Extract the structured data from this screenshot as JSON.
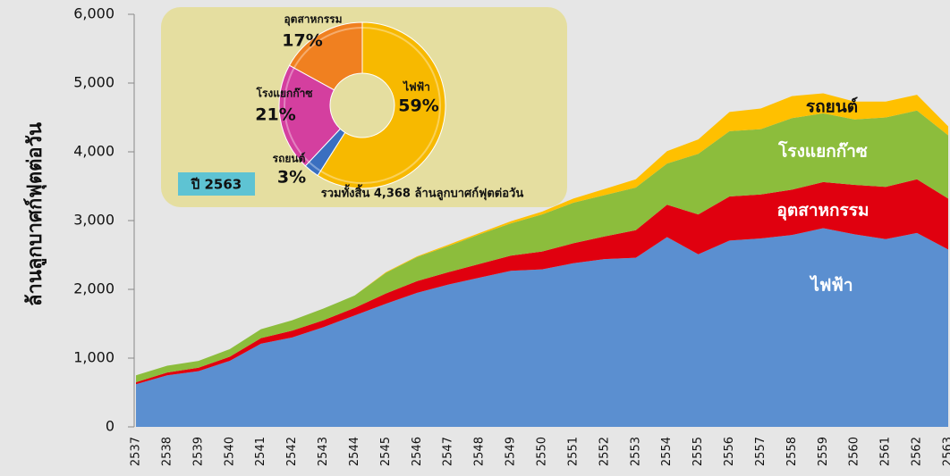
{
  "chart_data": [
    {
      "type": "stacked_area",
      "y_label": "ล้านลูกบาศก์ฟุตต่อวัน",
      "categories": [
        "2537",
        "2538",
        "2539",
        "2540",
        "2541",
        "2542",
        "2543",
        "2544",
        "2545",
        "2546",
        "2547",
        "2548",
        "2549",
        "2550",
        "2551",
        "2552",
        "2553",
        "2554",
        "2555",
        "2556",
        "2557",
        "2558",
        "2559",
        "2560",
        "2561",
        "2562",
        "2563"
      ],
      "series": [
        {
          "name": "ไฟฟ้า",
          "color": "#5b8fd0",
          "values": [
            620,
            750,
            810,
            960,
            1210,
            1300,
            1450,
            1620,
            1790,
            1950,
            2070,
            2170,
            2270,
            2290,
            2380,
            2440,
            2460,
            2760,
            2510,
            2710,
            2740,
            2790,
            2890,
            2800,
            2730,
            2820,
            2580
          ]
        },
        {
          "name": "อุตสาหกรรม",
          "color": "#e0000f",
          "values": [
            30,
            40,
            50,
            60,
            80,
            100,
            100,
            110,
            150,
            170,
            180,
            200,
            220,
            260,
            290,
            330,
            400,
            470,
            580,
            640,
            640,
            660,
            670,
            720,
            760,
            780,
            740
          ]
        },
        {
          "name": "โรงแยกก๊าซ",
          "color": "#8cbd3c",
          "values": [
            100,
            100,
            100,
            110,
            130,
            150,
            170,
            180,
            300,
            350,
            380,
            430,
            470,
            540,
            590,
            600,
            620,
            600,
            880,
            950,
            950,
            1040,
            1000,
            950,
            1010,
            1000,
            920
          ]
        },
        {
          "name": "รถยนต์",
          "color": "#ffc000",
          "values": [
            0,
            0,
            0,
            0,
            0,
            0,
            0,
            0,
            10,
            10,
            20,
            20,
            30,
            40,
            60,
            90,
            120,
            180,
            210,
            280,
            300,
            320,
            290,
            260,
            230,
            230,
            130
          ]
        }
      ],
      "ylim": [
        0,
        6000
      ],
      "yticks": [
        0,
        {
          "value": 1000,
          "label": "1,000"
        },
        {
          "value": 2000,
          "label": "2,000"
        },
        {
          "value": 3000,
          "label": "3,000"
        },
        {
          "value": 4000,
          "label": "4,000"
        },
        {
          "value": 5000,
          "label": "5,000"
        },
        {
          "value": 6000,
          "label": "6,000"
        }
      ]
    },
    {
      "type": "donut",
      "title": "ปี 2563",
      "subtitle": "รวมทั้งสิ้น 4,368 ล้านลูกบาศก์ฟุตต่อวัน",
      "categories": [
        "ไฟฟ้า",
        "รถยนต์",
        "โรงแยกก๊าซ",
        "อุตสาหกรรม"
      ],
      "values": [
        59,
        3,
        21,
        17
      ],
      "value_labels": [
        "59%",
        "3%",
        "21%",
        "17%"
      ],
      "colors": [
        "#f7b900",
        "#3a6fc0",
        "#d43f9f",
        "#f08020"
      ]
    }
  ]
}
